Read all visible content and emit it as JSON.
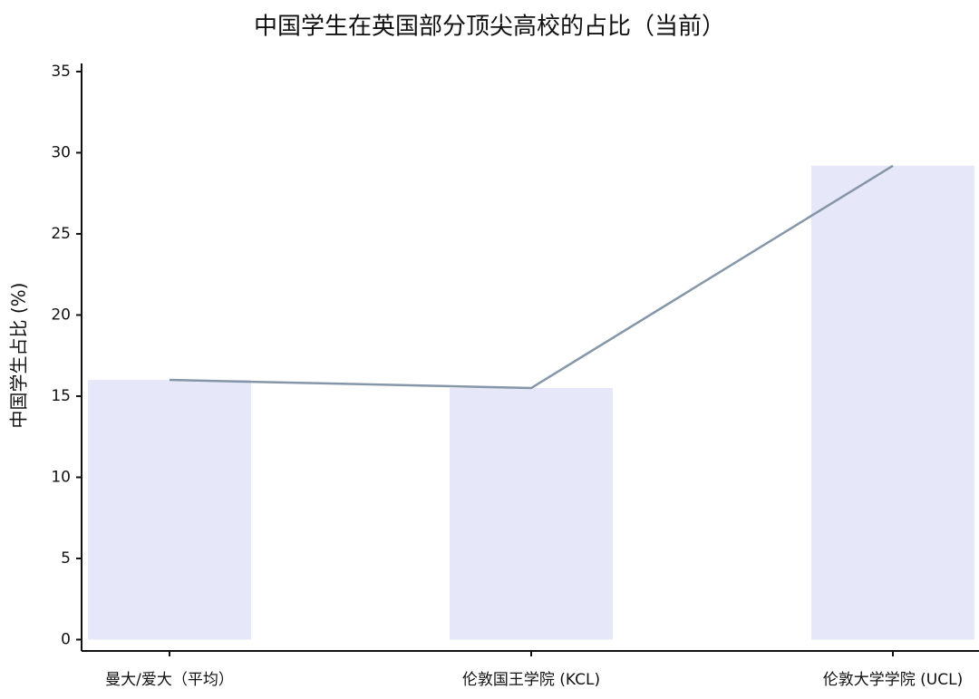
{
  "chart_data": {
    "type": "bar",
    "title": "中国学生在英国部分顶尖高校的占比（当前）",
    "y_label": "中国学生占比 (%)",
    "categories": [
      "曼大/爱大（平均）",
      "伦敦国王学院 (KCL)",
      "伦敦大学学院 (UCL)"
    ],
    "series": [
      {
        "type": "bar",
        "color": "#e6e8fa",
        "values": [
          16,
          15.5,
          29.2
        ]
      },
      {
        "type": "line",
        "color": "#8596a8",
        "values": [
          16,
          15.5,
          29.2
        ]
      }
    ],
    "ylim": [
      -0.7,
      35.5
    ],
    "yticks": [
      0,
      5,
      10,
      15,
      20,
      25,
      30,
      35
    ],
    "grid": false
  }
}
